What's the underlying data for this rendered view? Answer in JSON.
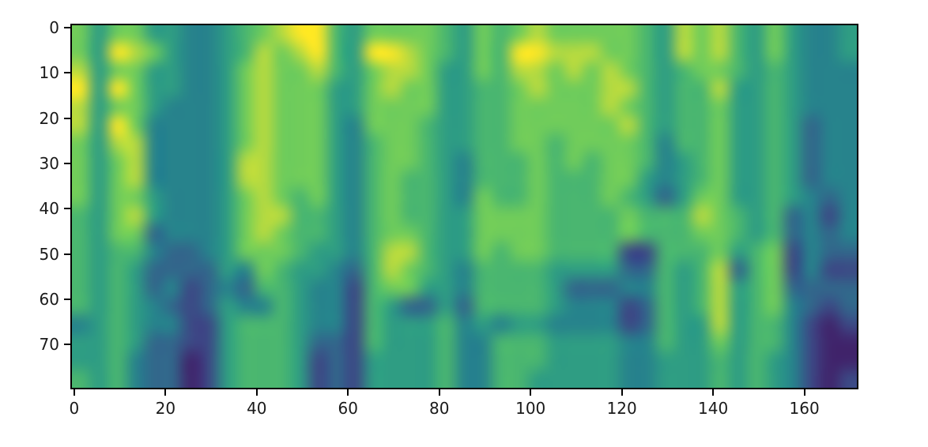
{
  "figure": {
    "background_color": "#ffffff",
    "spine_color": "#000000",
    "tick_color": "#000000",
    "tick_label_color": "#1a1a1a",
    "x_tick_labels": [
      "0",
      "20",
      "40",
      "60",
      "80",
      "100",
      "120",
      "140",
      "160"
    ],
    "y_tick_labels": [
      "0",
      "10",
      "20",
      "30",
      "40",
      "50",
      "60",
      "70"
    ]
  },
  "chart_data": {
    "type": "heatmap",
    "title": "",
    "xlabel": "",
    "ylabel": "",
    "legend": "none",
    "grid_lines": "off",
    "colormap": "viridis",
    "colormap_stops": [
      "#440154",
      "#3b528b",
      "#21918c",
      "#5ec962",
      "#fde725"
    ],
    "x_axis": {
      "ticks": [
        0,
        20,
        40,
        60,
        80,
        100,
        120,
        140,
        160
      ],
      "range": [
        -0.5,
        171.5
      ]
    },
    "y_axis": {
      "ticks": [
        0,
        10,
        20,
        30,
        40,
        50,
        60,
        70
      ],
      "range": [
        79.5,
        -0.5
      ],
      "inverted": true
    },
    "n_cols": 172,
    "n_rows": 80,
    "description": "Spectrogram-style image: 80 frequency bins (y, 0 at top) by ~172 time frames (x). Bright yellow-green harmonic bands in the upper half within voiced segments around x 0-18, 34-60, 65-88, 90-127, 132-158; darker teal/blue gaps near x 6, 19-33, 60-64, 88-90, 127-132, 158-163; lower half mostly teal-blue with dark purple low-energy patches, heaviest at bottom right.",
    "grid": {
      "cols": 43,
      "rows": 20,
      "col_span_units": 4,
      "row_span_units": 4,
      "intensity_min": 0,
      "intensity_max": 9,
      "values": [
        "7577554456789965777765767877777658786575445",
        "7598754456878965998765769988877658786575445",
        "8577554457877865788755768878787656776565444",
        "9597554457877755787755667877788656685565444",
        "8577544457877755777755667777787656675565444",
        "8597444457877754777655667777778656675565344",
        "7588444457877754677655667767777646675565344",
        "7578444458877754677654666767677645675565344",
        "7578444458877754676654666766677545675565344",
        "7577544457876754676654766766676535775565434",
        "6578544457886654676655777766667666876563424",
        "6577344457876654677655777766667666776563434",
        "6566433457776554688655767766662266675672433",
        "6565333354765543687654666655553365683672422",
        "6565342343665442677554666653334465685673333",
        "6565432354465442653353666654442365685674323",
        "4565442256665442655564545544442365585664212",
        "5565332256665332655564466655554465575664211",
        "5564331256665232555564466655554455565654211",
        "6564331256665232555564466555554455565654212"
      ]
    }
  }
}
